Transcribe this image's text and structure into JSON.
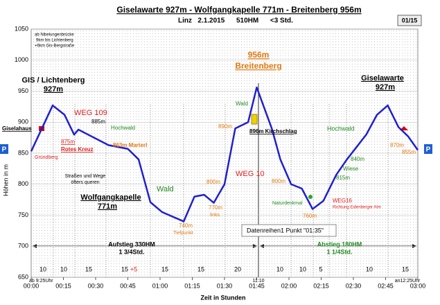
{
  "page_badge": "01/15",
  "chart_data": {
    "type": "line",
    "title": "Giselawarte 927m - Wolfgangkapelle  771m - Breitenberg  956m",
    "subtitle": "Linz   2.1.2015      510HM      <3 Std.",
    "x_label": "Zeit in Stunden",
    "y_label": "Höhen in m",
    "xlim": [
      0,
      180
    ],
    "ylim": [
      650,
      1050
    ],
    "xticks": [
      {
        "value": 0,
        "label": "00:00"
      },
      {
        "value": 15,
        "label": "00:15"
      },
      {
        "value": 30,
        "label": "00:30"
      },
      {
        "value": 45,
        "label": "00:45"
      },
      {
        "value": 60,
        "label": "01:00"
      },
      {
        "value": 75,
        "label": "01:15"
      },
      {
        "value": 90,
        "label": "01:30"
      },
      {
        "value": 105,
        "label": "01:45"
      },
      {
        "value": 120,
        "label": "02:00"
      },
      {
        "value": 135,
        "label": "02:15"
      },
      {
        "value": 150,
        "label": "02:30"
      },
      {
        "value": 165,
        "label": "02:45"
      },
      {
        "value": 180,
        "label": "03:00"
      }
    ],
    "yticks": [
      650,
      700,
      750,
      800,
      850,
      900,
      950,
      1000,
      1050
    ],
    "grid": true,
    "series": [
      {
        "name": "Datenreihen1",
        "color": "#1f1fd0",
        "x": [
          0,
          10,
          15.5,
          20,
          22,
          36,
          45,
          50,
          55.5,
          61,
          71,
          76,
          80.5,
          85,
          90,
          95,
          101,
          105,
          112,
          116,
          121,
          126,
          131,
          136,
          142,
          147,
          156,
          161,
          166,
          171,
          175.5,
          180
        ],
        "values": [
          853,
          927,
          912,
          880,
          888,
          863,
          857,
          840,
          771,
          755,
          740,
          780,
          783,
          770,
          800,
          890,
          900,
          956,
          890,
          840,
          800,
          793,
          760,
          773,
          815,
          840,
          880,
          912,
          927,
          892,
          877,
          855
        ]
      }
    ],
    "annotations": [
      "GIS / Lichtenberg",
      "927m",
      "Giselahaus",
      "Gründberg",
      "WEG 109",
      "885m",
      "875m",
      "Rotes Kreuz",
      "Hochwald",
      "863m Marterl",
      "Straßen und Wege",
      "öfters queren",
      "Wolfgangkapelle",
      "771m",
      "Wald",
      "740m",
      "Tiefpunkt",
      "800m",
      "770m",
      "links",
      "890m",
      "Wald",
      "956m",
      "Breitenberg",
      "896m Kirchschlag",
      "WEG 10",
      "800m",
      "Naturdenkmal",
      "WEG16",
      "Richtung Eidenberger Alm",
      "760m",
      "Hochwald",
      "840m",
      "Wiese",
      "815m",
      "Giselawarte",
      "927m",
      "870m",
      "855m",
      "Aufstieg 330HM",
      "1 3/4Std.",
      "Abstieg 180HM",
      "1 1/4Std.",
      "ab Nibelungenbrücke",
      "9km bis Lichtenberg",
      "+6km Gis-Bergstraße",
      "P",
      "P",
      "Datenreihen1 Punkt \"01:35\"",
      "ab 9:25Uhr",
      "11:10",
      "an12:25Uhr"
    ],
    "segment_labels": [
      "10",
      "10",
      "15",
      "15",
      "+5",
      "15",
      "15",
      "20",
      "10",
      "10",
      "5",
      "10",
      "15"
    ]
  }
}
